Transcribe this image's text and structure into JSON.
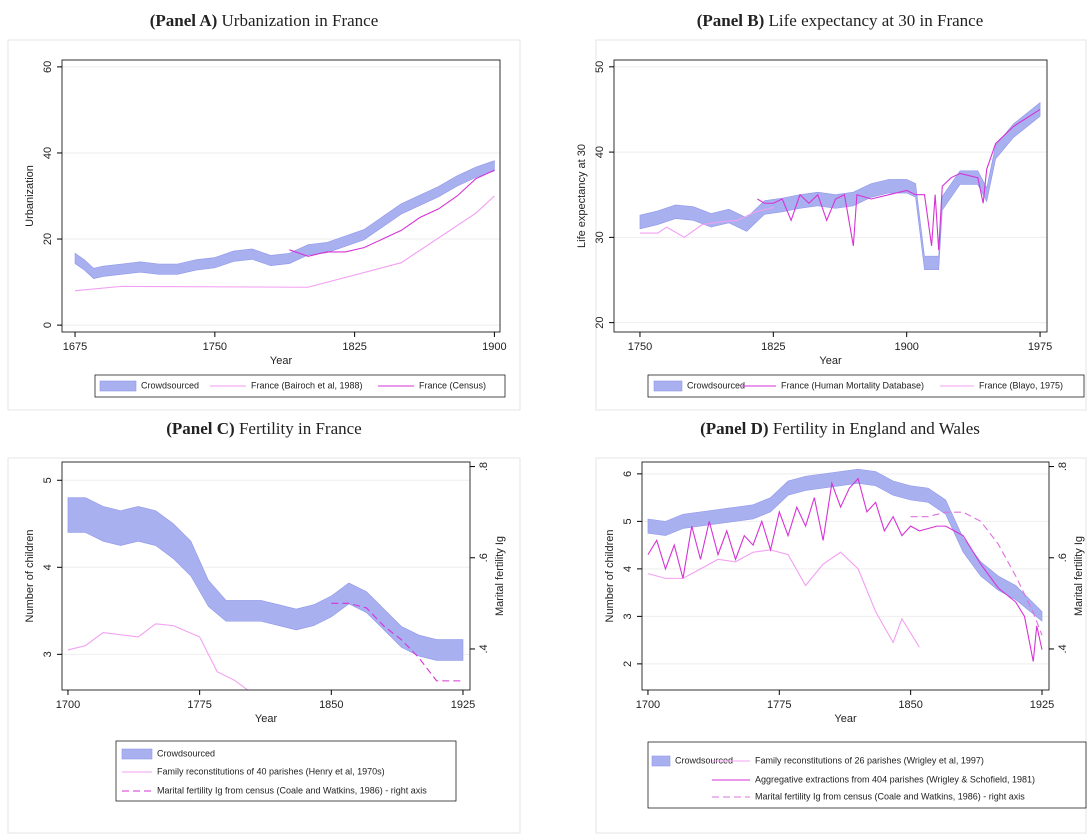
{
  "chart_data": [
    {
      "type": "line",
      "panel": "(Panel A)",
      "title": "Urbanization in France",
      "xlabel": "Year",
      "ylabel": "Urbanization",
      "xlim": [
        1668,
        1903
      ],
      "xticks": [
        1675,
        1750,
        1825,
        1900
      ],
      "ylim": [
        -1.6,
        61.6
      ],
      "yticks": [
        0,
        20,
        40,
        60
      ],
      "grid": true,
      "series": [
        {
          "name": "Crowdsourced",
          "style": "band",
          "color": "#a9b0f0",
          "x": [
            1675,
            1680,
            1685,
            1690,
            1700,
            1710,
            1720,
            1730,
            1740,
            1750,
            1760,
            1770,
            1780,
            1790,
            1800,
            1810,
            1820,
            1830,
            1840,
            1850,
            1860,
            1870,
            1880,
            1890,
            1900
          ],
          "lower": [
            14.3,
            12.8,
            10.8,
            11.3,
            11.8,
            12.3,
            11.8,
            11.8,
            12.8,
            13.3,
            14.8,
            15.3,
            13.8,
            14.3,
            16.3,
            16.8,
            18.3,
            19.8,
            22.8,
            25.8,
            27.8,
            29.8,
            32.3,
            34.3,
            35.8
          ],
          "upper": [
            16.7,
            15.2,
            13.2,
            13.7,
            14.2,
            14.7,
            14.2,
            14.2,
            15.2,
            15.7,
            17.2,
            17.7,
            16.2,
            16.7,
            18.7,
            19.2,
            20.7,
            22.2,
            25.2,
            28.2,
            30.2,
            32.2,
            34.7,
            36.7,
            38.2
          ]
        },
        {
          "name": "France (Bairoch et al, 1988)",
          "style": "solid",
          "color": "#f29ef2",
          "x": [
            1675,
            1700,
            1800,
            1850,
            1890,
            1900
          ],
          "values": [
            8,
            9,
            8.8,
            14.5,
            26,
            30
          ]
        },
        {
          "name": "France (Census)",
          "style": "solid",
          "color": "#d633d6",
          "x": [
            1790,
            1800,
            1810,
            1820,
            1830,
            1840,
            1850,
            1860,
            1870,
            1880,
            1890,
            1900
          ],
          "values": [
            17.5,
            16,
            17,
            17,
            18,
            20,
            22,
            25,
            27,
            30,
            34,
            36
          ]
        }
      ]
    },
    {
      "type": "line",
      "panel": "(Panel B)",
      "title": "Life expectancy at 30 in France",
      "xlabel": "Year",
      "ylabel": "Life expectancy at 30",
      "xlim": [
        1735.4,
        1978.9
      ],
      "xticks": [
        1750,
        1825,
        1900,
        1975
      ],
      "ylim": [
        18.9,
        50.8
      ],
      "yticks": [
        20,
        30,
        40,
        50
      ],
      "grid": true,
      "series": [
        {
          "name": "Crowdsourced",
          "style": "band",
          "color": "#a9b0f0",
          "x": [
            1750,
            1760,
            1770,
            1780,
            1790,
            1800,
            1810,
            1820,
            1830,
            1840,
            1850,
            1860,
            1870,
            1880,
            1890,
            1900,
            1905,
            1910,
            1918,
            1920,
            1930,
            1940,
            1945,
            1950,
            1960,
            1975
          ],
          "lower": [
            31,
            31.5,
            32.2,
            32,
            31.2,
            31.7,
            30.7,
            32.7,
            33,
            33.4,
            33.7,
            33.4,
            33.7,
            34.7,
            35.2,
            35.2,
            34.7,
            26.2,
            26.2,
            33.2,
            36.2,
            36.2,
            34.2,
            39.2,
            41.7,
            44.2
          ],
          "upper": [
            32.6,
            33.1,
            33.8,
            33.6,
            32.8,
            33.3,
            32.3,
            34.3,
            34.6,
            35,
            35.3,
            35,
            35.3,
            36.3,
            36.8,
            36.8,
            36.3,
            27.8,
            27.8,
            34.8,
            37.8,
            37.8,
            35.8,
            40.8,
            43.3,
            45.8
          ]
        },
        {
          "name": "France (Human Mortality Database)",
          "style": "solid",
          "color": "#d633d6",
          "x": [
            1816,
            1820,
            1825,
            1830,
            1835,
            1840,
            1845,
            1850,
            1855,
            1860,
            1865,
            1870,
            1872,
            1880,
            1890,
            1900,
            1905,
            1910,
            1914,
            1916,
            1918,
            1920,
            1925,
            1930,
            1940,
            1943,
            1945,
            1950,
            1960,
            1975
          ],
          "values": [
            34.5,
            34,
            34,
            34.5,
            32,
            35,
            34,
            35,
            32,
            34.5,
            35,
            29,
            35,
            34.5,
            35,
            35.5,
            35,
            35,
            29,
            35,
            28.5,
            36,
            37,
            37.5,
            37,
            34,
            38,
            41,
            43,
            45
          ]
        },
        {
          "name": "France (Blayo, 1975)",
          "style": "solid",
          "color": "#f2a0f2",
          "x": [
            1750,
            1760,
            1765,
            1775,
            1785,
            1795,
            1805,
            1815,
            1825
          ],
          "values": [
            30.5,
            30.5,
            31.2,
            30,
            31.5,
            31.8,
            32,
            33,
            33.5
          ]
        }
      ]
    },
    {
      "type": "line",
      "panel": "(Panel C)",
      "title": "Fertility in France",
      "xlabel": "Year",
      "ylabel": "Number of children",
      "y2label": "Marital fertility Ig",
      "xlim": [
        1696.6,
        1929
      ],
      "xticks": [
        1700,
        1775,
        1850,
        1925
      ],
      "ylim": [
        2.59,
        5.21
      ],
      "yticks": [
        3,
        4,
        5
      ],
      "y2lim": [
        0.31,
        0.81
      ],
      "y2ticks": [
        {
          "value": 0.4,
          "label": ".4"
        },
        {
          "value": 0.6,
          "label": ".6"
        },
        {
          "value": 0.8,
          "label": ".8"
        }
      ],
      "grid": true,
      "series": [
        {
          "name": "Crowdsourced",
          "style": "band",
          "color": "#a9b0f0",
          "x": [
            1700,
            1710,
            1720,
            1730,
            1740,
            1750,
            1760,
            1770,
            1780,
            1790,
            1800,
            1810,
            1820,
            1830,
            1840,
            1850,
            1860,
            1870,
            1880,
            1890,
            1900,
            1910,
            1925
          ],
          "lower": [
            4.4,
            4.4,
            4.3,
            4.25,
            4.3,
            4.25,
            4.1,
            3.9,
            3.55,
            3.38,
            3.38,
            3.38,
            3.33,
            3.28,
            3.33,
            3.43,
            3.58,
            3.48,
            3.28,
            3.08,
            2.98,
            2.93,
            2.93
          ],
          "upper": [
            4.8,
            4.8,
            4.7,
            4.65,
            4.7,
            4.65,
            4.5,
            4.3,
            3.85,
            3.62,
            3.62,
            3.62,
            3.57,
            3.52,
            3.57,
            3.67,
            3.82,
            3.72,
            3.52,
            3.32,
            3.22,
            3.17,
            3.17
          ]
        },
        {
          "name": "Family reconstitutions of 40 parishes (Henry et al, 1970s)",
          "style": "solid",
          "color": "#f2a0f2",
          "x": [
            1700,
            1710,
            1720,
            1740,
            1750,
            1760,
            1775,
            1785,
            1795,
            1805
          ],
          "values": [
            3.05,
            3.1,
            3.25,
            3.2,
            3.35,
            3.33,
            3.2,
            2.8,
            2.7,
            2.55
          ]
        },
        {
          "name": "Marital fertility Ig from census (Coale and Watkins, 1986) - right axis",
          "style": "dashed",
          "color": "#d633d6",
          "axis": "y2",
          "x": [
            1850,
            1860,
            1870,
            1880,
            1890,
            1900,
            1910,
            1920,
            1925
          ],
          "values": [
            0.5,
            0.5,
            0.49,
            0.45,
            0.42,
            0.38,
            0.33,
            0.33,
            0.33
          ]
        }
      ]
    },
    {
      "type": "line",
      "panel": "(Panel D)",
      "title": "Fertility in England and Wales",
      "xlabel": "Year",
      "ylabel": "Number of children",
      "y2label": "Marital fertility Ig",
      "xlim": [
        1696.6,
        1929
      ],
      "xticks": [
        1700,
        1775,
        1850,
        1925
      ],
      "ylim": [
        1.45,
        6.25
      ],
      "yticks": [
        2,
        3,
        4,
        5,
        6
      ],
      "y2lim": [
        0.31,
        0.81
      ],
      "y2ticks": [
        {
          "value": 0.4,
          "label": ".4"
        },
        {
          "value": 0.6,
          "label": ".6"
        },
        {
          "value": 0.8,
          "label": ".8"
        }
      ],
      "grid": true,
      "series": [
        {
          "name": "Crowdsourced",
          "style": "band",
          "color": "#a9b0f0",
          "x": [
            1700,
            1710,
            1720,
            1730,
            1740,
            1750,
            1760,
            1770,
            1780,
            1790,
            1800,
            1810,
            1820,
            1830,
            1840,
            1850,
            1860,
            1870,
            1880,
            1890,
            1900,
            1910,
            1925
          ],
          "lower": [
            4.75,
            4.7,
            4.85,
            4.9,
            4.95,
            5,
            5.05,
            5.2,
            5.55,
            5.65,
            5.7,
            5.75,
            5.8,
            5.75,
            5.55,
            5.45,
            5.4,
            5.15,
            4.35,
            3.85,
            3.55,
            3.35,
            2.9
          ],
          "upper": [
            5.05,
            5,
            5.15,
            5.2,
            5.25,
            5.3,
            5.35,
            5.5,
            5.85,
            5.95,
            6,
            6.05,
            6.1,
            6.05,
            5.85,
            5.75,
            5.7,
            5.45,
            4.65,
            4.15,
            3.85,
            3.65,
            3.1
          ]
        },
        {
          "name": "Family reconstitutions of 26 parishes (Wrigley et al, 1997)",
          "style": "solid",
          "color": "#f2a0f2",
          "x": [
            1700,
            1710,
            1720,
            1730,
            1740,
            1750,
            1760,
            1770,
            1780,
            1790,
            1800,
            1810,
            1820,
            1830,
            1840,
            1845,
            1855
          ],
          "values": [
            3.9,
            3.8,
            3.8,
            4,
            4.2,
            4.15,
            4.35,
            4.4,
            4.3,
            3.65,
            4.1,
            4.35,
            4,
            3.1,
            2.45,
            2.95,
            2.35
          ]
        },
        {
          "name": "Aggregative extractions from 404 parishes (Wrigley & Schofield, 1981)",
          "style": "solid",
          "color": "#d633d6",
          "x": [
            1700,
            1705,
            1710,
            1715,
            1720,
            1725,
            1730,
            1735,
            1740,
            1745,
            1750,
            1755,
            1760,
            1765,
            1770,
            1775,
            1780,
            1785,
            1790,
            1795,
            1800,
            1805,
            1810,
            1815,
            1820,
            1825,
            1830,
            1835,
            1840,
            1845,
            1850,
            1855,
            1860,
            1865,
            1870,
            1875,
            1880,
            1890,
            1900,
            1910,
            1915,
            1920,
            1922,
            1925
          ],
          "values": [
            4.3,
            4.6,
            4,
            4.5,
            3.8,
            4.9,
            4.2,
            5,
            4.3,
            4.8,
            4.2,
            4.7,
            4.5,
            5,
            4.4,
            5.2,
            4.7,
            5.3,
            4.9,
            5.5,
            4.6,
            5.8,
            5.3,
            5.7,
            5.9,
            5.2,
            5.4,
            4.8,
            5.1,
            4.7,
            4.9,
            4.8,
            4.85,
            4.9,
            4.9,
            4.8,
            4.7,
            4.1,
            3.6,
            3.3,
            3,
            2.05,
            2.8,
            2.3
          ]
        },
        {
          "name": "Marital fertility Ig from census (Coale and Watkins, 1986) - right axis",
          "style": "dashed",
          "color": "#e070e0",
          "axis": "y2",
          "x": [
            1850,
            1860,
            1870,
            1880,
            1890,
            1900,
            1910,
            1920,
            1925
          ],
          "values": [
            0.69,
            0.69,
            0.7,
            0.7,
            0.68,
            0.63,
            0.56,
            0.48,
            0.43
          ]
        }
      ]
    }
  ]
}
